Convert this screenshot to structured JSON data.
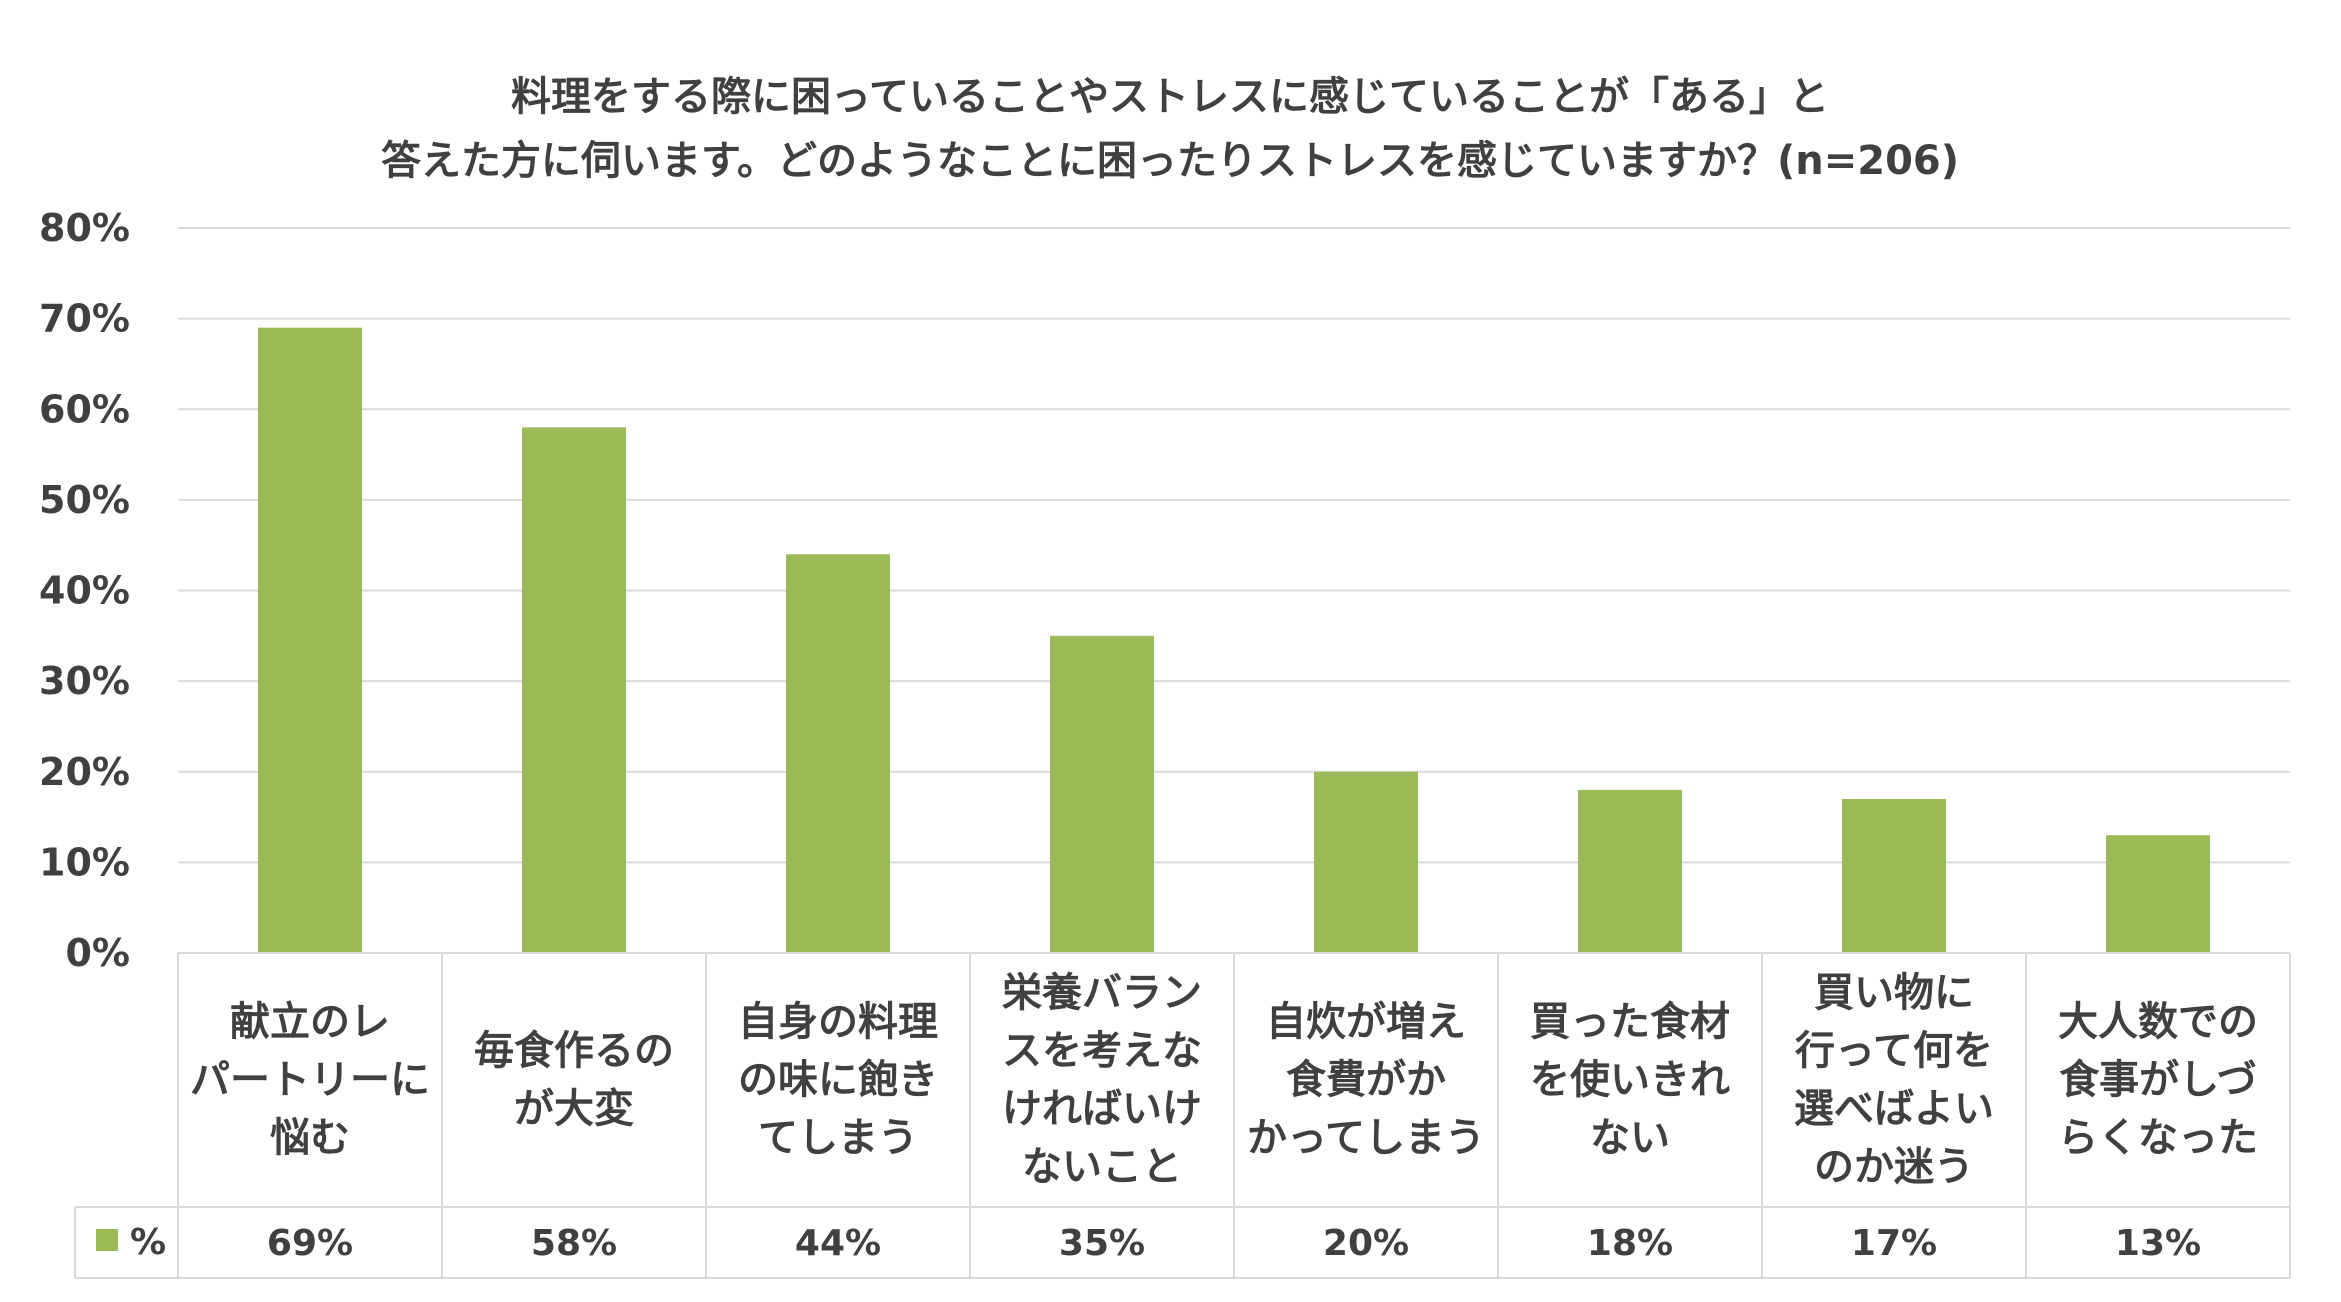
{
  "chart_data": {
    "type": "bar",
    "title_lines": [
      "料理をする際に困っていることやストレスに感じていることが「ある」と",
      "答えた方に伺います。どのようなことに困ったりストレスを感じていますか？(n=206)"
    ],
    "categories": [
      [
        "献立のレ",
        "パートリーに",
        "悩む"
      ],
      [
        "毎食作るの",
        "が大変"
      ],
      [
        "自身の料理",
        "の味に飽き",
        "てしまう"
      ],
      [
        "栄養バラン",
        "スを考えな",
        "ければいけ",
        "ないこと"
      ],
      [
        "自炊が増え",
        "食費がか",
        "かってしまう"
      ],
      [
        "買った食材",
        "を使いきれ",
        "ない"
      ],
      [
        "買い物に",
        "行って何を",
        "選べばよい",
        "のか迷う"
      ],
      [
        "大人数での",
        "食事がしづ",
        "らくなった"
      ]
    ],
    "series": [
      {
        "name": "%",
        "values": [
          69,
          58,
          44,
          35,
          20,
          18,
          17,
          13
        ],
        "labels": [
          "69%",
          "58%",
          "44%",
          "35%",
          "20%",
          "18%",
          "17%",
          "13%"
        ]
      }
    ],
    "yticks": [
      "0%",
      "10%",
      "20%",
      "30%",
      "40%",
      "50%",
      "60%",
      "70%",
      "80%"
    ],
    "ylim": [
      0,
      80
    ],
    "grid": true,
    "data_table": true,
    "colors": {
      "bar": "#9BBB59",
      "grid": "#D9D9D9",
      "text": "#404040"
    }
  }
}
